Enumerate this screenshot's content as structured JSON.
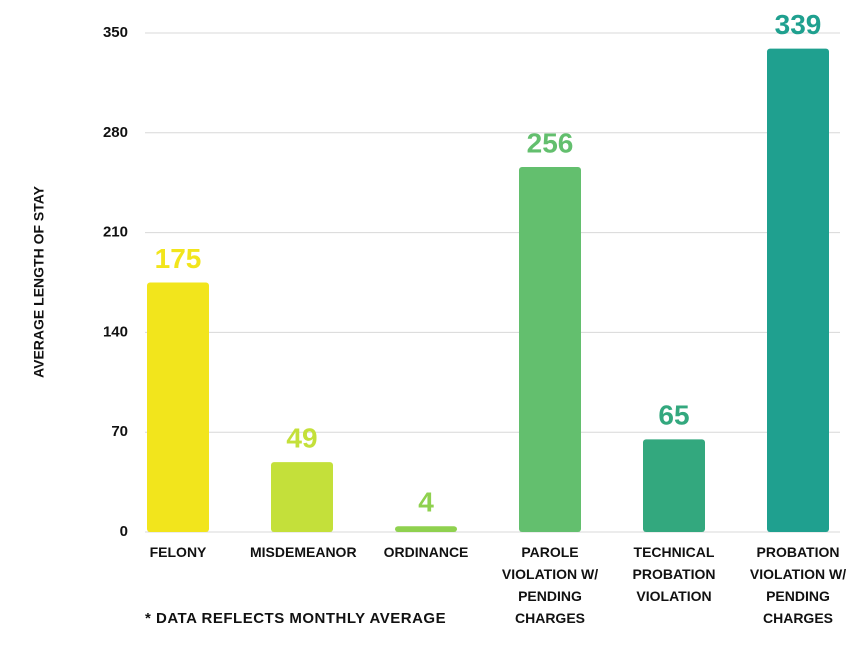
{
  "chart_data": {
    "type": "bar",
    "y_label": "AVERAGE LENGTH OF STAY",
    "categories": [
      "FELONY",
      "MISDEMEANOR",
      "ORDINANCE",
      "PAROLE VIOLATION W/ PENDING CHARGES",
      "TECHNICAL PROBATION VIOLATION",
      "PROBATION VIOLATION W/ PENDING CHARGES"
    ],
    "values": [
      175,
      49,
      4,
      256,
      65,
      339
    ],
    "colors": [
      "#f2e51c",
      "#c4e03a",
      "#8fd14f",
      "#63bf6e",
      "#33a87e",
      "#1fa08f"
    ],
    "ylim": [
      0,
      350
    ],
    "yticks": [
      0,
      70,
      140,
      210,
      280,
      350
    ],
    "grid": true,
    "annotation": "* DATA REFLECTS MONTHLY AVERAGE"
  }
}
